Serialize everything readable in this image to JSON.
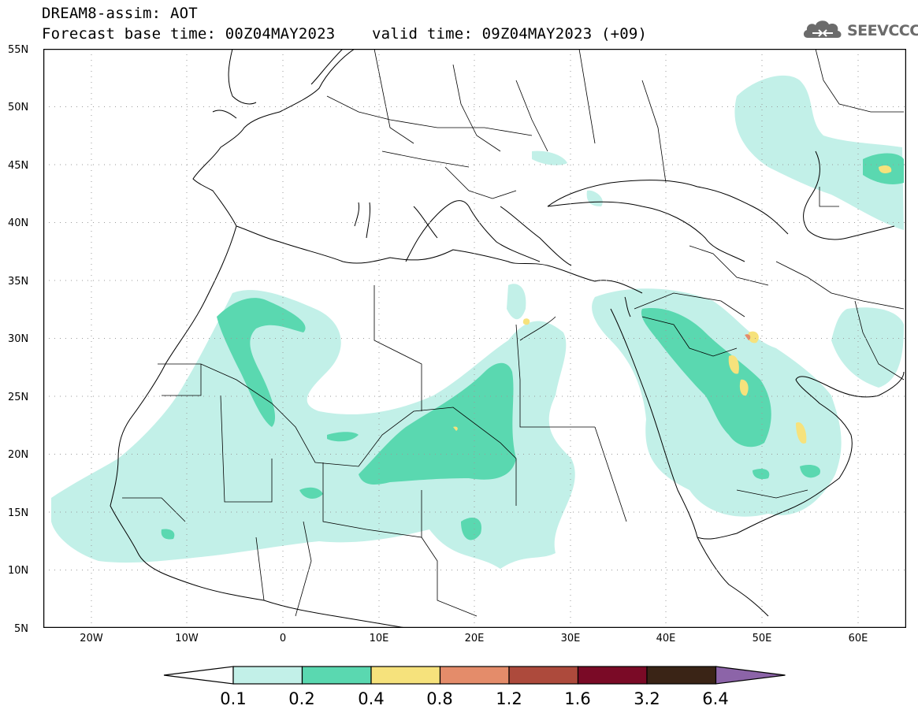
{
  "header": {
    "line1": "DREAM8-assim: AOT",
    "line2": "Forecast base time: 00Z04MAY2023    valid time: 09Z04MAY2023 (+09)"
  },
  "logo": {
    "text": "SEEVCCC",
    "icon": "cloud-icon",
    "color": "#6b6b6b"
  },
  "map": {
    "lat_range": [
      5,
      55
    ],
    "lon_range": [
      -25,
      65
    ],
    "lat_labels": [
      "55N",
      "50N",
      "45N",
      "40N",
      "35N",
      "30N",
      "25N",
      "20N",
      "15N",
      "10N",
      "5N"
    ],
    "lon_labels": [
      "20W",
      "10W",
      "0",
      "10E",
      "20E",
      "30E",
      "40E",
      "50E",
      "60E"
    ]
  },
  "colorbar": {
    "levels": [
      "0.1",
      "0.2",
      "0.4",
      "0.8",
      "1.2",
      "1.6",
      "3.2",
      "6.4"
    ],
    "colors": [
      "#ffffff",
      "#c2f0e8",
      "#5ad8b0",
      "#f6e27c",
      "#e48c6a",
      "#ad4a3c",
      "#7a0a26",
      "#3a2416",
      "#8c64a8"
    ]
  }
}
